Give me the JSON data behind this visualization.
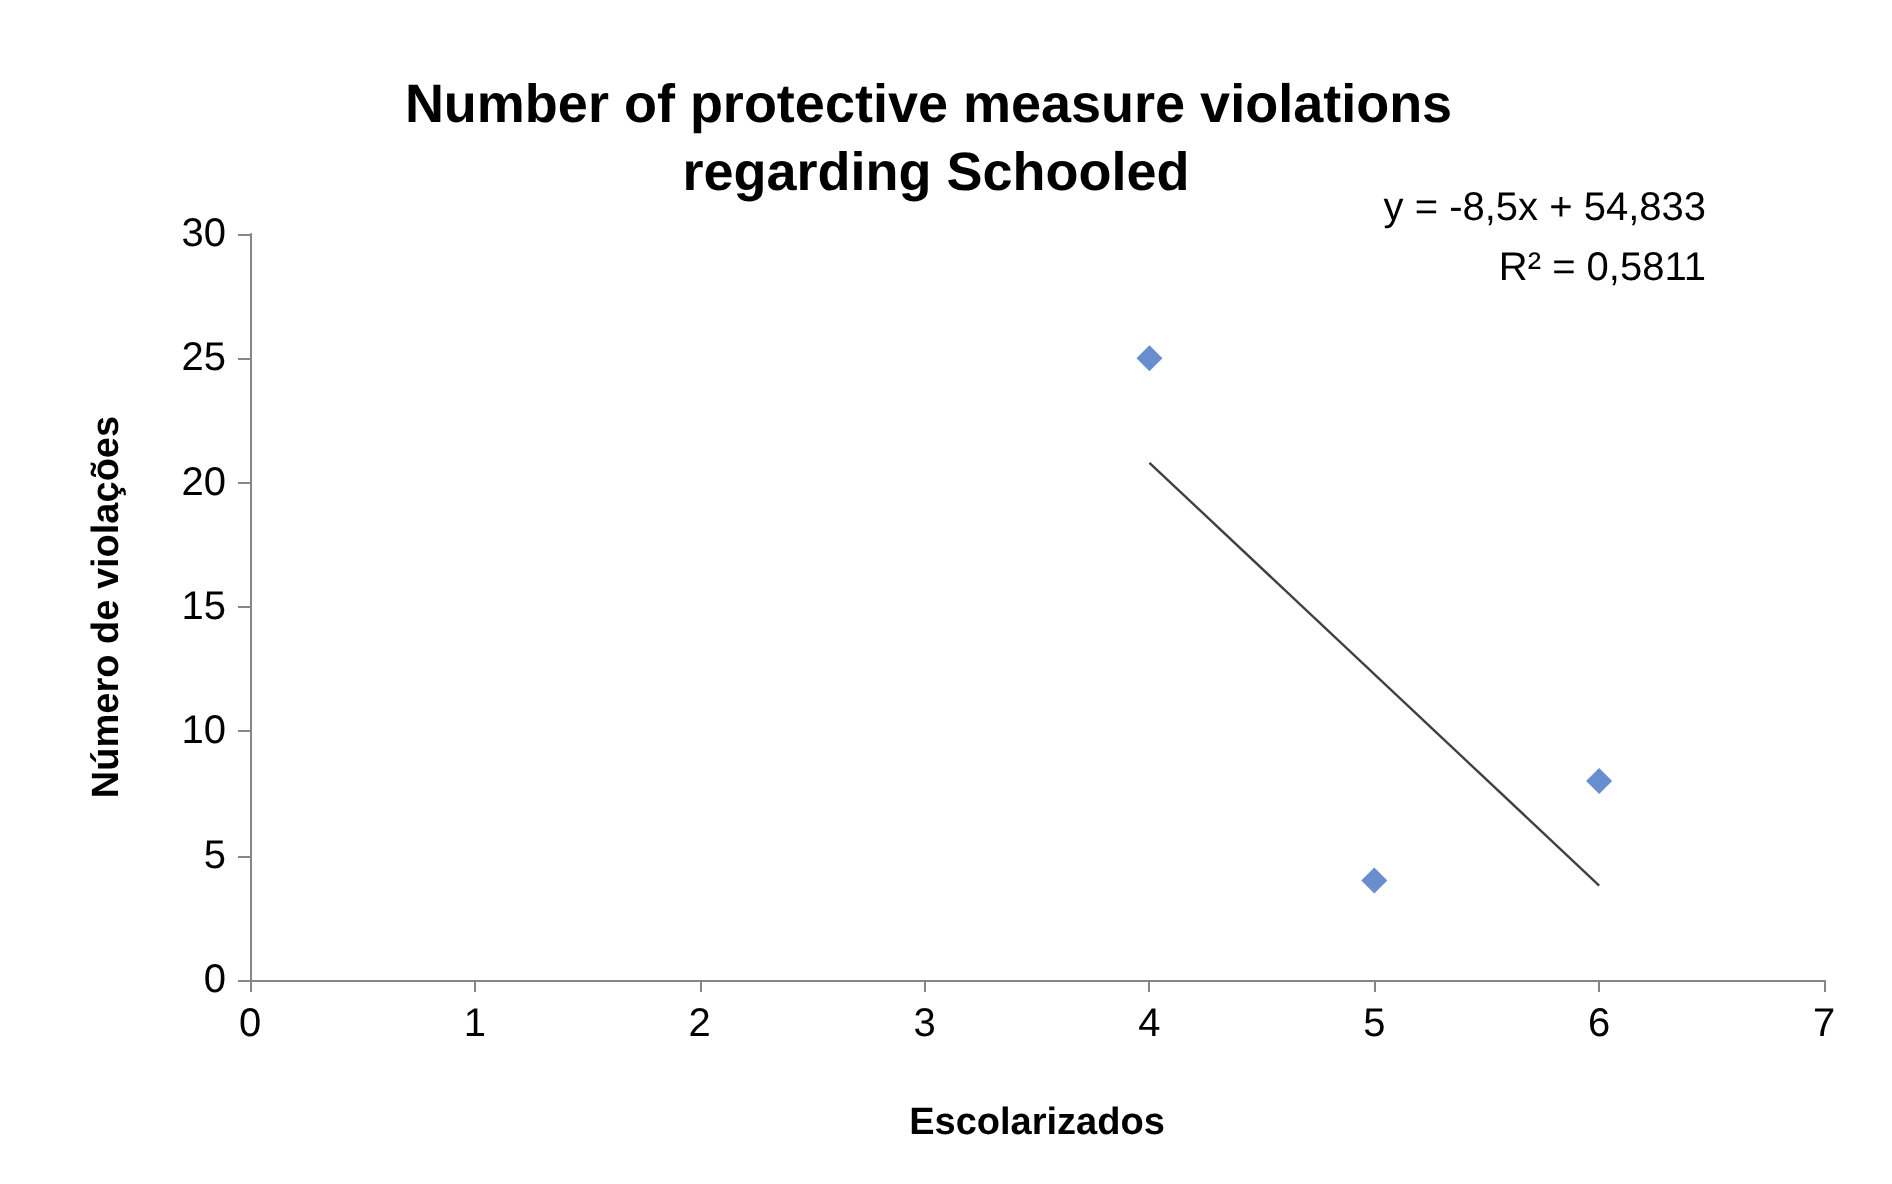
{
  "chart_data": {
    "type": "scatter",
    "title": "Number of protective measure violations regarding Schooled",
    "xlabel": "Escolarizados",
    "ylabel": "Número de violações",
    "annotations": [
      "y = -8,5x + 54,833",
      "R² = 0,5811"
    ],
    "x": [
      4,
      5,
      6
    ],
    "series": [
      {
        "color": "#4472c4",
        "values": [
          25,
          4,
          8
        ]
      },
      {
        "type": "line",
        "x": [
          4,
          6
        ],
        "values": [
          20.8,
          3.8
        ],
        "color": "#404040",
        "marker": "none"
      }
    ],
    "xlim": [
      0,
      7
    ],
    "xticks": [
      0,
      1,
      2,
      3,
      4,
      5,
      6,
      7
    ],
    "ylim": [
      0,
      30
    ],
    "yticks": [
      0,
      5,
      10,
      15,
      20,
      25,
      30
    ],
    "grid": false,
    "marker": "diamond"
  }
}
